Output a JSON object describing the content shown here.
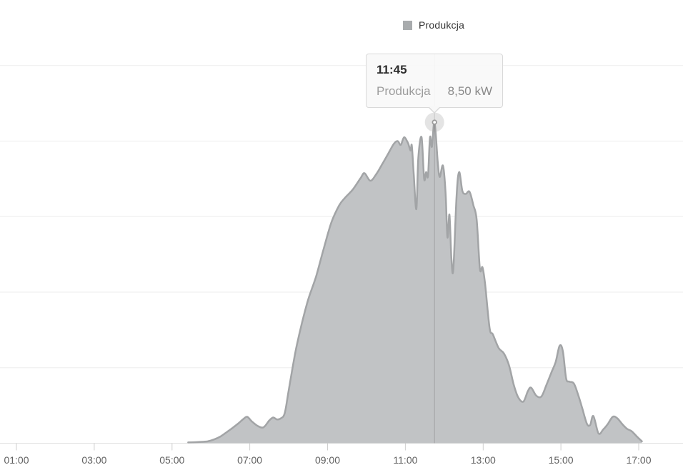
{
  "page": {
    "background": "#ffffff"
  },
  "legend": {
    "label": "Produkcja",
    "swatch_color": "#a8abad"
  },
  "tooltip": {
    "time": "11:45",
    "series": "Produkcja",
    "value": "8,50 kW"
  },
  "chart_data": {
    "type": "area",
    "title": "",
    "xlabel": "",
    "ylabel": "",
    "legend_position": "top",
    "grid": true,
    "y_axis_labels_visible": false,
    "ylim": [
      0,
      10.5
    ],
    "gridline_step_kw": 2,
    "xticks": [
      "01:00",
      "03:00",
      "05:00",
      "07:00",
      "09:00",
      "11:00",
      "13:00",
      "15:00",
      "17:00"
    ],
    "highlighted_point": {
      "time": "11:45",
      "kw": 8.5,
      "formatted": "8,50 kW"
    },
    "colors": {
      "fill": "#c1c3c5",
      "line": "#a2a4a6",
      "gridline": "#ededed",
      "axis": "#e0e0e0",
      "tick": "#cfcfcf",
      "tick_label": "#616161",
      "crosshair": "rgba(0,0,0,0.16)",
      "halo": "rgba(158,158,158,0.28)",
      "dot_fill": "#ffffff",
      "dot_stroke": "#9b9b9b"
    },
    "series": [
      {
        "name": "Produkcja",
        "unit": "kW",
        "points": [
          [
            "05:25",
            0.02
          ],
          [
            "05:40",
            0.03
          ],
          [
            "05:55",
            0.05
          ],
          [
            "06:05",
            0.1
          ],
          [
            "06:15",
            0.18
          ],
          [
            "06:25",
            0.3
          ],
          [
            "06:33",
            0.4
          ],
          [
            "06:42",
            0.52
          ],
          [
            "06:50",
            0.64
          ],
          [
            "06:56",
            0.7
          ],
          [
            "07:03",
            0.58
          ],
          [
            "07:12",
            0.46
          ],
          [
            "07:21",
            0.42
          ],
          [
            "07:30",
            0.6
          ],
          [
            "07:36",
            0.68
          ],
          [
            "07:42",
            0.63
          ],
          [
            "07:48",
            0.66
          ],
          [
            "07:54",
            0.8
          ],
          [
            "08:00",
            1.4
          ],
          [
            "08:06",
            2.0
          ],
          [
            "08:12",
            2.55
          ],
          [
            "08:20",
            3.15
          ],
          [
            "08:30",
            3.8
          ],
          [
            "08:42",
            4.4
          ],
          [
            "08:54",
            5.15
          ],
          [
            "09:06",
            5.85
          ],
          [
            "09:18",
            6.3
          ],
          [
            "09:27",
            6.5
          ],
          [
            "09:39",
            6.72
          ],
          [
            "09:51",
            7.02
          ],
          [
            "09:57",
            7.15
          ],
          [
            "10:06",
            6.95
          ],
          [
            "10:15",
            7.12
          ],
          [
            "10:24",
            7.38
          ],
          [
            "10:33",
            7.65
          ],
          [
            "10:42",
            7.92
          ],
          [
            "10:48",
            8.0
          ],
          [
            "10:53",
            7.9
          ],
          [
            "10:58",
            8.1
          ],
          [
            "11:04",
            7.95
          ],
          [
            "11:08",
            7.75
          ],
          [
            "11:10",
            7.88
          ],
          [
            "11:13",
            7.1
          ],
          [
            "11:17",
            6.2
          ],
          [
            "11:20",
            7.55
          ],
          [
            "11:25",
            8.1
          ],
          [
            "11:29",
            7.0
          ],
          [
            "11:32",
            7.18
          ],
          [
            "11:35",
            7.08
          ],
          [
            "11:38",
            8.1
          ],
          [
            "11:41",
            7.85
          ],
          [
            "11:45",
            8.5
          ],
          [
            "11:50",
            7.45
          ],
          [
            "11:53",
            7.05
          ],
          [
            "11:58",
            7.35
          ],
          [
            "12:02",
            6.65
          ],
          [
            "12:05",
            5.45
          ],
          [
            "12:08",
            6.05
          ],
          [
            "12:11",
            4.9
          ],
          [
            "12:14",
            4.6
          ],
          [
            "12:19",
            6.55
          ],
          [
            "12:23",
            7.18
          ],
          [
            "12:28",
            6.68
          ],
          [
            "12:33",
            6.6
          ],
          [
            "12:39",
            6.66
          ],
          [
            "12:45",
            6.3
          ],
          [
            "12:50",
            5.92
          ],
          [
            "12:55",
            4.62
          ],
          [
            "12:59",
            4.66
          ],
          [
            "13:03",
            4.22
          ],
          [
            "13:10",
            3.05
          ],
          [
            "13:15",
            2.88
          ],
          [
            "13:24",
            2.52
          ],
          [
            "13:32",
            2.38
          ],
          [
            "13:40",
            2.06
          ],
          [
            "13:47",
            1.56
          ],
          [
            "13:54",
            1.22
          ],
          [
            "14:02",
            1.1
          ],
          [
            "14:09",
            1.38
          ],
          [
            "14:14",
            1.47
          ],
          [
            "14:22",
            1.26
          ],
          [
            "14:30",
            1.24
          ],
          [
            "14:38",
            1.56
          ],
          [
            "14:46",
            1.9
          ],
          [
            "14:52",
            2.16
          ],
          [
            "14:58",
            2.58
          ],
          [
            "15:03",
            2.44
          ],
          [
            "15:08",
            1.72
          ],
          [
            "15:13",
            1.63
          ],
          [
            "15:20",
            1.58
          ],
          [
            "15:27",
            1.26
          ],
          [
            "15:33",
            0.92
          ],
          [
            "15:40",
            0.52
          ],
          [
            "15:45",
            0.48
          ],
          [
            "15:50",
            0.72
          ],
          [
            "15:58",
            0.26
          ],
          [
            "16:05",
            0.36
          ],
          [
            "16:12",
            0.5
          ],
          [
            "16:20",
            0.7
          ],
          [
            "16:27",
            0.66
          ],
          [
            "16:35",
            0.5
          ],
          [
            "16:42",
            0.38
          ],
          [
            "16:49",
            0.32
          ],
          [
            "16:57",
            0.18
          ],
          [
            "17:05",
            0.05
          ]
        ]
      }
    ]
  }
}
